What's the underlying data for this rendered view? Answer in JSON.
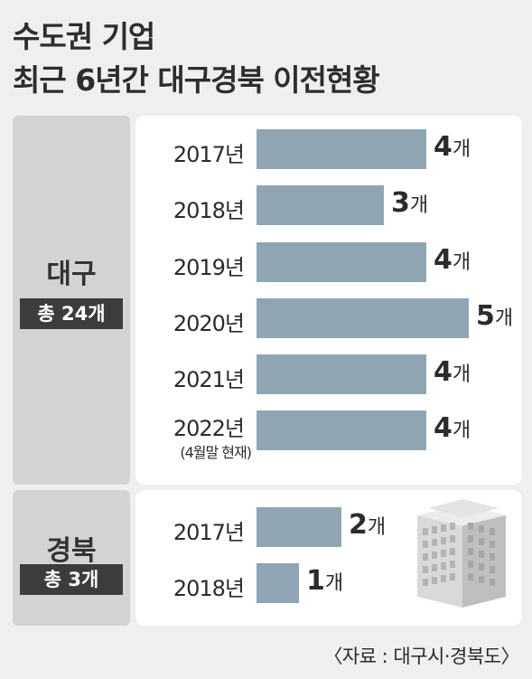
{
  "title_line1": "수도권 기업",
  "title_line2": "최근 6년간 대구경북 이전현황",
  "unit": "개",
  "source": "〈자료 : 대구시·경북도〉",
  "colors": {
    "bar": "#8fa5b4",
    "badge": "#3c3c3c",
    "panel_left": "#d3d3d3",
    "panel_right": "#ffffff",
    "background": "#efefef"
  },
  "icons": [
    "building-icon"
  ],
  "chart_data": [
    {
      "type": "bar",
      "orientation": "horizontal",
      "region": "대구",
      "total_label": "총 24개",
      "categories": [
        "2017년",
        "2018년",
        "2019년",
        "2020년",
        "2021년",
        "2022년"
      ],
      "notes": [
        "",
        "",
        "",
        "",
        "",
        "(4월말 현재)"
      ],
      "values": [
        4,
        3,
        4,
        5,
        4,
        4
      ]
    },
    {
      "type": "bar",
      "orientation": "horizontal",
      "region": "경북",
      "total_label": "총 3개",
      "categories": [
        "2017년",
        "2018년"
      ],
      "notes": [
        "",
        ""
      ],
      "values": [
        2,
        1
      ]
    }
  ]
}
